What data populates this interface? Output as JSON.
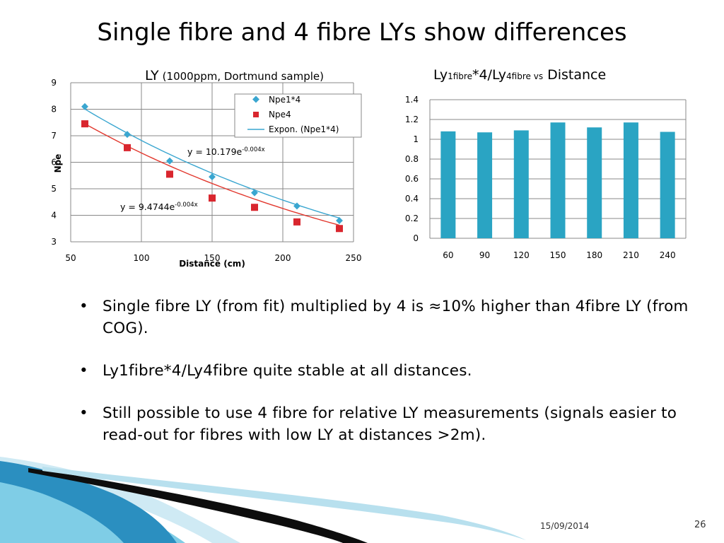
{
  "slide": {
    "title": "Single fibre and 4 fibre LYs show differences",
    "footer_date": "15/09/2014",
    "page_number": "26"
  },
  "bullets": [
    "Single fibre LY (from fit) multiplied by 4 is ≈10% higher than 4fibre LY (from COG).",
    "Ly1fibre*4/Ly4fibre quite stable at all distances.",
    "Still possible to use 4 fibre for relative LY measurements (signals easier to read-out for fibres with low LY at distances >2m)."
  ],
  "colors": {
    "npe1x4": "#3aa6d0",
    "npe4": "#d9262e",
    "fit_npe1x4": "#3aa6d0",
    "fit_npe4": "#e2382e",
    "bars": "#2aa4c3",
    "grid": "#888888"
  },
  "chart_data": [
    {
      "type": "scatter",
      "title": "LY",
      "subtitle": "(1000ppm, Dortmund sample)",
      "xlabel": "Distance (cm)",
      "ylabel": "Npe",
      "xlim": [
        50,
        250
      ],
      "ylim": [
        3,
        9
      ],
      "xticks": [
        "50",
        "100",
        "150",
        "200",
        "250"
      ],
      "yticks": [
        "3",
        "4",
        "5",
        "6",
        "7",
        "8",
        "9"
      ],
      "grid": true,
      "legend_position": "top-right",
      "legend": [
        "Npe1*4",
        "Npe4",
        "Expon. (Npe1*4)"
      ],
      "series": [
        {
          "name": "Npe1*4",
          "marker": "diamond",
          "x": [
            60,
            90,
            120,
            150,
            180,
            210,
            240
          ],
          "y": [
            8.1,
            7.05,
            6.05,
            5.45,
            4.85,
            4.35,
            3.8
          ]
        },
        {
          "name": "Npe4",
          "marker": "square",
          "x": [
            60,
            90,
            120,
            150,
            180,
            210,
            240
          ],
          "y": [
            7.45,
            6.55,
            5.55,
            4.65,
            4.3,
            3.75,
            3.5
          ]
        }
      ],
      "fits": [
        {
          "name": "Expon. (Npe1*4)",
          "A": 10.179,
          "k": -0.004,
          "label_base": "y = 10.179e",
          "label_exp": "-0.004x"
        },
        {
          "name": "",
          "A": 9.4744,
          "k": -0.004,
          "label_base": "y = 9.4744e",
          "label_exp": "-0.004x"
        }
      ]
    },
    {
      "type": "bar",
      "title_parts": [
        "Ly",
        "1fibre",
        "*4/Ly",
        "4fibre vs",
        " Distance"
      ],
      "categories": [
        "60",
        "90",
        "120",
        "150",
        "180",
        "210",
        "240"
      ],
      "values": [
        1.08,
        1.07,
        1.09,
        1.17,
        1.12,
        1.17,
        1.075
      ],
      "ylim": [
        0,
        1.4
      ],
      "yticks": [
        "0",
        "0.2",
        "0.4",
        "0.6",
        "0.8",
        "1",
        "1.2",
        "1.4"
      ],
      "grid": true
    }
  ]
}
